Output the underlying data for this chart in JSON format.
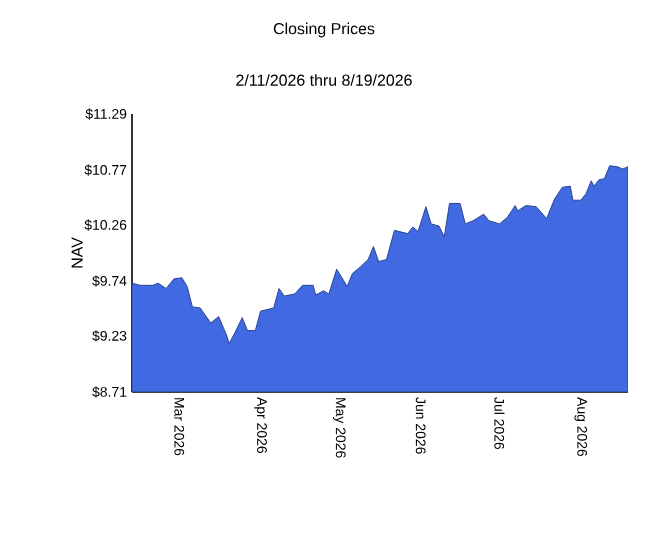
{
  "chart_data": {
    "type": "area",
    "title": "Closing Prices",
    "subtitle": "2/11/2026 thru 8/19/2026",
    "ylabel": "NAV",
    "x": [
      "2026-02-11",
      "2026-02-14",
      "2026-02-19",
      "2026-02-21",
      "2026-02-24",
      "2026-02-27",
      "2026-03-02",
      "2026-03-04",
      "2026-03-06",
      "2026-03-09",
      "2026-03-13",
      "2026-03-16",
      "2026-03-19",
      "2026-03-20",
      "2026-03-22",
      "2026-03-25",
      "2026-03-27",
      "2026-03-30",
      "2026-04-01",
      "2026-04-06",
      "2026-04-08",
      "2026-04-10",
      "2026-04-14",
      "2026-04-17",
      "2026-04-21",
      "2026-04-22",
      "2026-04-25",
      "2026-04-27",
      "2026-04-30",
      "2026-05-04",
      "2026-05-06",
      "2026-05-09",
      "2026-05-12",
      "2026-05-14",
      "2026-05-16",
      "2026-05-19",
      "2026-05-22",
      "2026-05-27",
      "2026-05-29",
      "2026-05-31",
      "2026-06-03",
      "2026-06-05",
      "2026-06-08",
      "2026-06-10",
      "2026-06-12",
      "2026-06-16",
      "2026-06-18",
      "2026-06-21",
      "2026-06-25",
      "2026-06-27",
      "2026-07-01",
      "2026-07-04",
      "2026-07-07",
      "2026-07-08",
      "2026-07-11",
      "2026-07-15",
      "2026-07-19",
      "2026-07-22",
      "2026-07-25",
      "2026-07-28",
      "2026-07-29",
      "2026-08-01",
      "2026-08-03",
      "2026-08-05",
      "2026-08-06",
      "2026-08-08",
      "2026-08-10",
      "2026-08-12",
      "2026-08-15",
      "2026-08-17",
      "2026-08-19"
    ],
    "series": [
      {
        "color": "#4169e1",
        "values": [
          9.72,
          9.7,
          9.7,
          9.72,
          9.67,
          9.76,
          9.77,
          9.69,
          9.5,
          9.49,
          9.35,
          9.41,
          9.24,
          9.16,
          9.25,
          9.4,
          9.28,
          9.28,
          9.46,
          9.49,
          9.67,
          9.6,
          9.62,
          9.7,
          9.7,
          9.61,
          9.65,
          9.62,
          9.85,
          9.69,
          9.81,
          9.87,
          9.94,
          10.06,
          9.92,
          9.94,
          10.21,
          10.18,
          10.24,
          10.2,
          10.43,
          10.27,
          10.25,
          10.15,
          10.46,
          10.46,
          10.27,
          10.3,
          10.36,
          10.3,
          10.27,
          10.33,
          10.44,
          10.39,
          10.44,
          10.43,
          10.32,
          10.5,
          10.61,
          10.62,
          10.49,
          10.49,
          10.55,
          10.67,
          10.62,
          10.68,
          10.69,
          10.81,
          10.8,
          10.78,
          10.8
        ]
      }
    ],
    "xlim": [
      "2026-02-11",
      "2026-08-19"
    ],
    "xticks": [
      {
        "value": "2026-03-01",
        "label": "Mar  2026"
      },
      {
        "value": "2026-04-01",
        "label": "Apr  2026"
      },
      {
        "value": "2026-05-01",
        "label": "May  2026"
      },
      {
        "value": "2026-06-01",
        "label": "Jun  2026"
      },
      {
        "value": "2026-07-01",
        "label": "Jul  2026"
      },
      {
        "value": "2026-08-01",
        "label": "Aug  2026"
      }
    ],
    "ylim": [
      8.71,
      11.29
    ],
    "yticks": [
      {
        "value": 8.71,
        "label": "$8.71"
      },
      {
        "value": 9.23,
        "label": "$9.23"
      },
      {
        "value": 9.74,
        "label": "$9.74"
      },
      {
        "value": 10.26,
        "label": "$10.26"
      },
      {
        "value": 10.77,
        "label": "$10.77"
      },
      {
        "value": 11.29,
        "label": "$11.29"
      }
    ]
  }
}
